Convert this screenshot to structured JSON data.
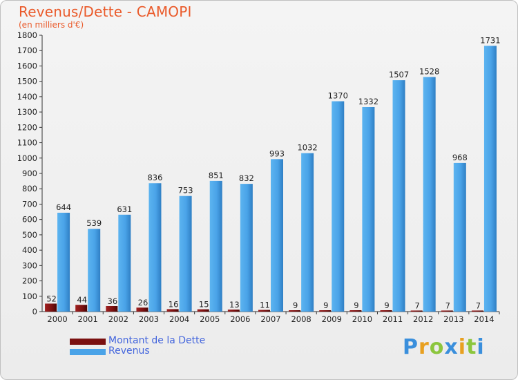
{
  "chart_data": {
    "type": "bar",
    "title": "Revenus/Dette - CAMOPI",
    "subtitle": "(en milliers d'€)",
    "categories": [
      "2000",
      "2001",
      "2002",
      "2003",
      "2004",
      "2005",
      "2006",
      "2007",
      "2008",
      "2009",
      "2010",
      "2011",
      "2012",
      "2013",
      "2014"
    ],
    "series": [
      {
        "name": "Montant de la Dette",
        "color": "#7a1010",
        "values": [
          52,
          44,
          36,
          26,
          16,
          15,
          13,
          11,
          9,
          9,
          9,
          9,
          7,
          7,
          7
        ]
      },
      {
        "name": "Revenus",
        "color": "#4aa3e8",
        "values": [
          644,
          539,
          631,
          836,
          753,
          851,
          832,
          993,
          1032,
          1370,
          1332,
          1507,
          1528,
          968,
          1731
        ]
      }
    ],
    "ylim": [
      0,
      1800
    ],
    "yticks": [
      0,
      100,
      200,
      300,
      400,
      500,
      600,
      700,
      800,
      900,
      1000,
      1100,
      1200,
      1300,
      1400,
      1500,
      1600,
      1700,
      1800
    ],
    "grid": false,
    "legend_position": "bottom-left"
  },
  "logo": {
    "letters": [
      "P",
      "r",
      "o",
      "x",
      "i",
      "t",
      "i"
    ],
    "colors": [
      "#3a8fdc",
      "#e8a020",
      "#8cc63e",
      "#3a8fdc",
      "#e8a020",
      "#8cc63e",
      "#3a8fdc"
    ]
  }
}
